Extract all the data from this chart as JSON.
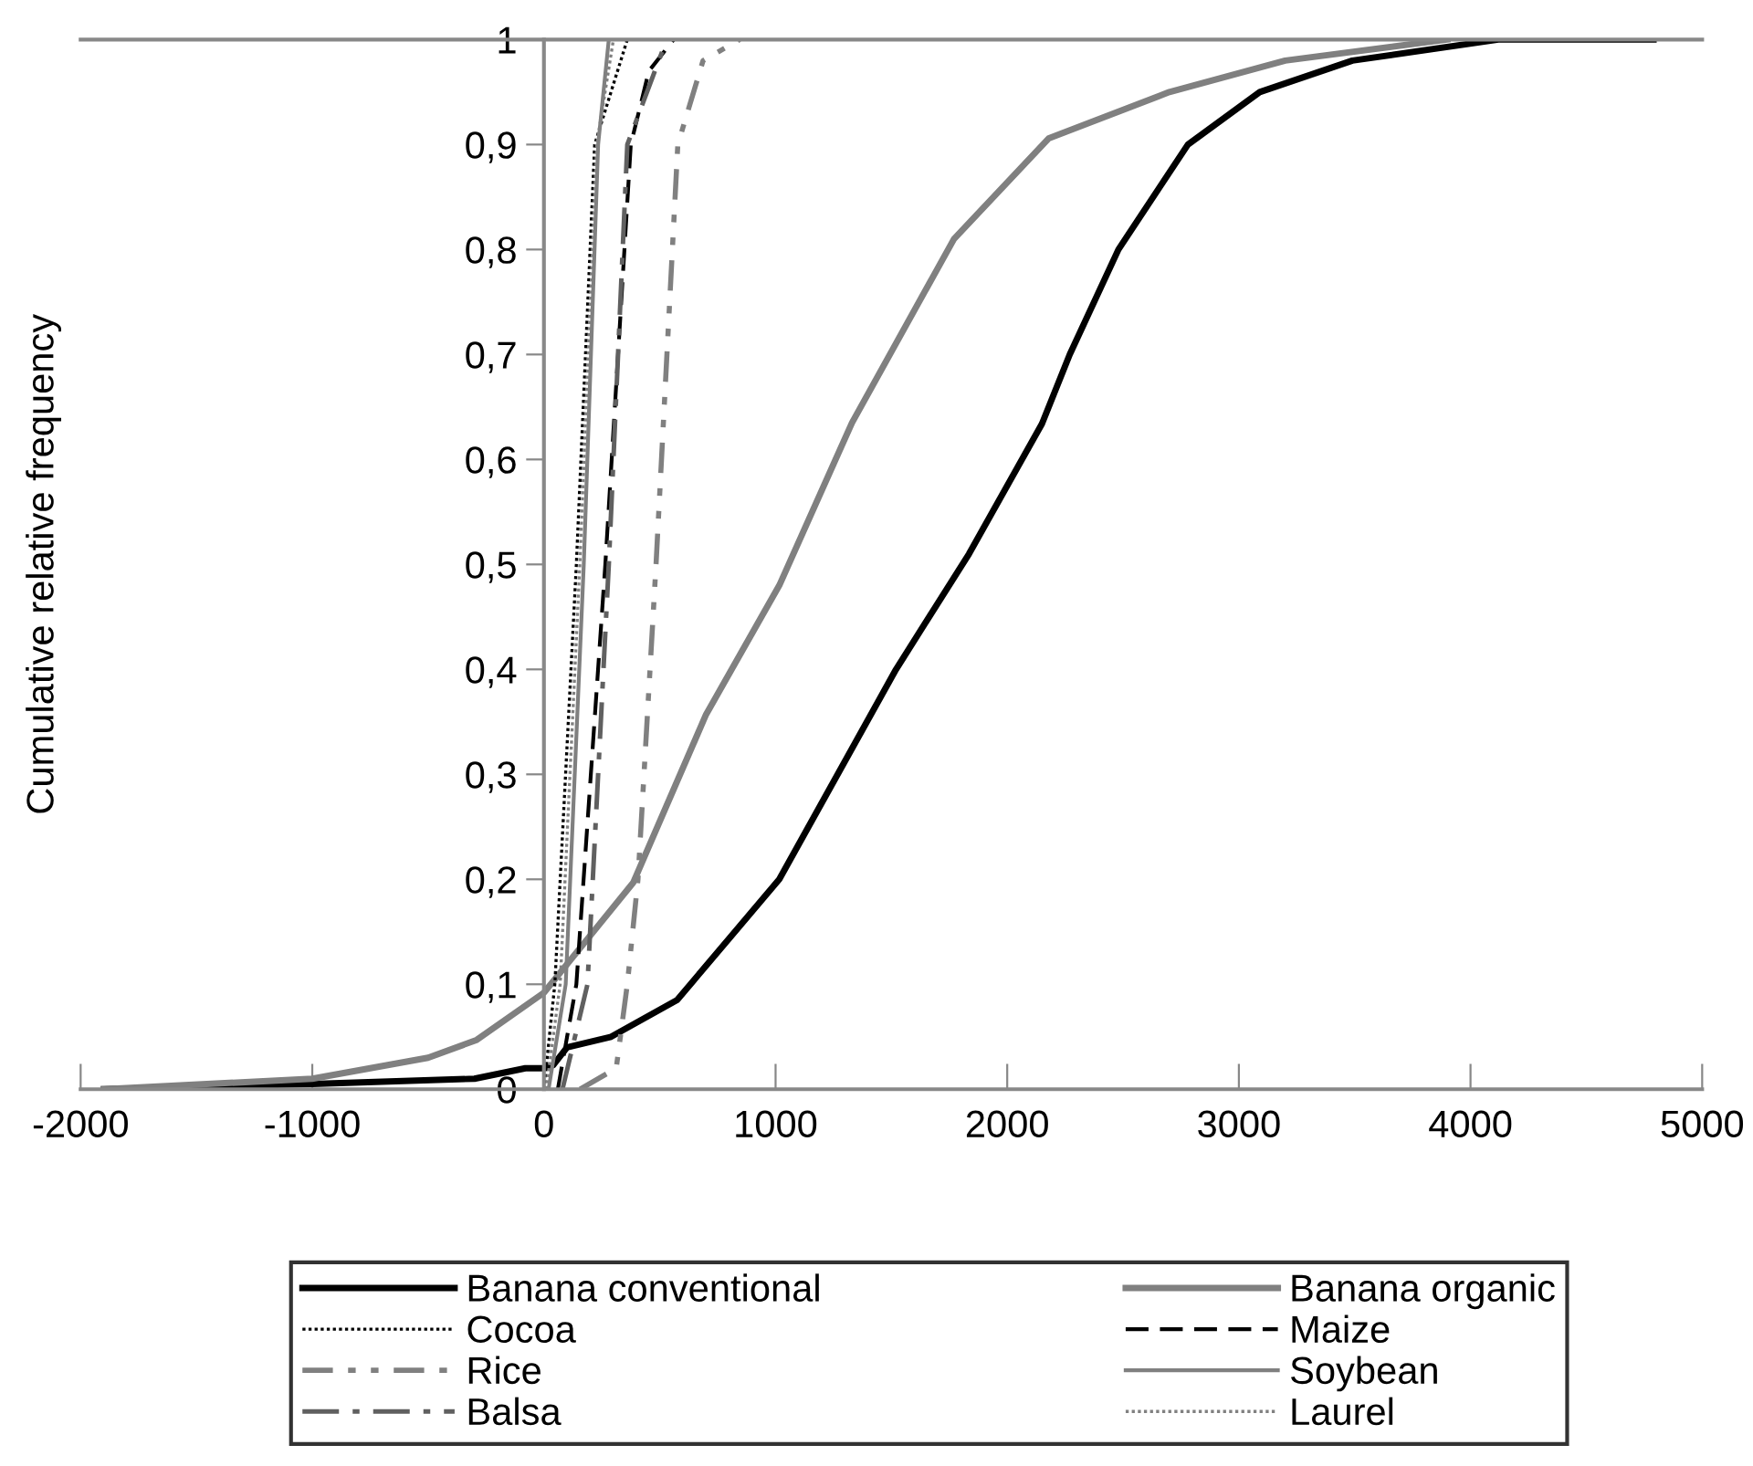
{
  "chart_data": {
    "type": "line",
    "ylabel": "Cumulative relative frequency",
    "xlim": [
      -2000,
      5000
    ],
    "xticks": [
      -2000,
      -1000,
      0,
      1000,
      2000,
      3000,
      4000,
      5000
    ],
    "ylim": [
      0,
      1
    ],
    "yticks": [
      {
        "value": 0,
        "label": "0"
      },
      {
        "value": 0.1,
        "label": "0,1"
      },
      {
        "value": 0.2,
        "label": "0,2"
      },
      {
        "value": 0.3,
        "label": "0,3"
      },
      {
        "value": 0.4,
        "label": "0,4"
      },
      {
        "value": 0.5,
        "label": "0,5"
      },
      {
        "value": 0.6,
        "label": "0,6"
      },
      {
        "value": 0.7,
        "label": "0,7"
      },
      {
        "value": 0.8,
        "label": "0,8"
      },
      {
        "value": 0.9,
        "label": "0,9"
      },
      {
        "value": 1,
        "label": "1"
      }
    ],
    "grid": false,
    "legend": "bottom",
    "marker": "none",
    "series": [
      {
        "name": "Banana conventional",
        "color": "#000000",
        "line_style": "solid",
        "x": [
          -1900,
          -1000,
          -300,
          -80,
          0,
          40,
          100,
          290,
          575,
          1016,
          1520,
          1835,
          2150,
          2270,
          2480,
          2780,
          3090,
          3490,
          4120,
          4790
        ],
        "values": [
          0,
          0.005,
          0.01,
          0.02,
          0.02,
          0.023,
          0.04,
          0.05,
          0.085,
          0.2,
          0.4,
          0.51,
          0.634,
          0.7,
          0.8,
          0.9,
          0.95,
          0.98,
          1,
          1
        ]
      },
      {
        "name": "Banana organic",
        "color": "#808080",
        "line_style": "solid",
        "x": [
          -1900,
          -1000,
          -500,
          -290,
          0,
          386,
          700,
          1016,
          1330,
          1770,
          2180,
          2700,
          3200,
          3900
        ],
        "values": [
          0,
          0.01,
          0.03,
          0.047,
          0.092,
          0.197,
          0.357,
          0.48,
          0.635,
          0.81,
          0.906,
          0.95,
          0.98,
          1
        ]
      },
      {
        "name": "Cocoa",
        "color": "#000000",
        "line_style": "dotted",
        "x": [
          0,
          47,
          140,
          219,
          360
        ],
        "values": [
          0,
          0.1,
          0.5,
          0.9,
          1
        ]
      },
      {
        "name": "Maize",
        "color": "#000000",
        "line_style": "dashed",
        "x": [
          60,
          140,
          265,
          375,
          453,
          560
        ],
        "values": [
          0,
          0.1,
          0.5,
          0.9,
          0.97,
          1
        ]
      },
      {
        "name": "Rice",
        "color": "#808080",
        "line_style": "dashdotdot",
        "x": [
          156,
          312,
          360,
          406,
          484,
          578,
          687,
          845
        ],
        "values": [
          0,
          0.02,
          0.1,
          0.2,
          0.5,
          0.9,
          0.98,
          1
        ]
      },
      {
        "name": "Soybean",
        "color": "#808080",
        "line_style": "solid",
        "x": [
          20,
          94,
          172,
          234,
          280
        ],
        "values": [
          0,
          0.1,
          0.5,
          0.9,
          1
        ]
      },
      {
        "name": "Balsa",
        "color": "#606060",
        "line_style": "dashdot",
        "x": [
          80,
          188,
          280,
          360,
          530
        ],
        "values": [
          0,
          0.1,
          0.5,
          0.9,
          1
        ]
      },
      {
        "name": "Laurel",
        "color": "#808080",
        "line_style": "dotted",
        "x": [
          10,
          70,
          155,
          228,
          300
        ],
        "values": [
          0,
          0.1,
          0.5,
          0.9,
          1
        ]
      }
    ]
  }
}
